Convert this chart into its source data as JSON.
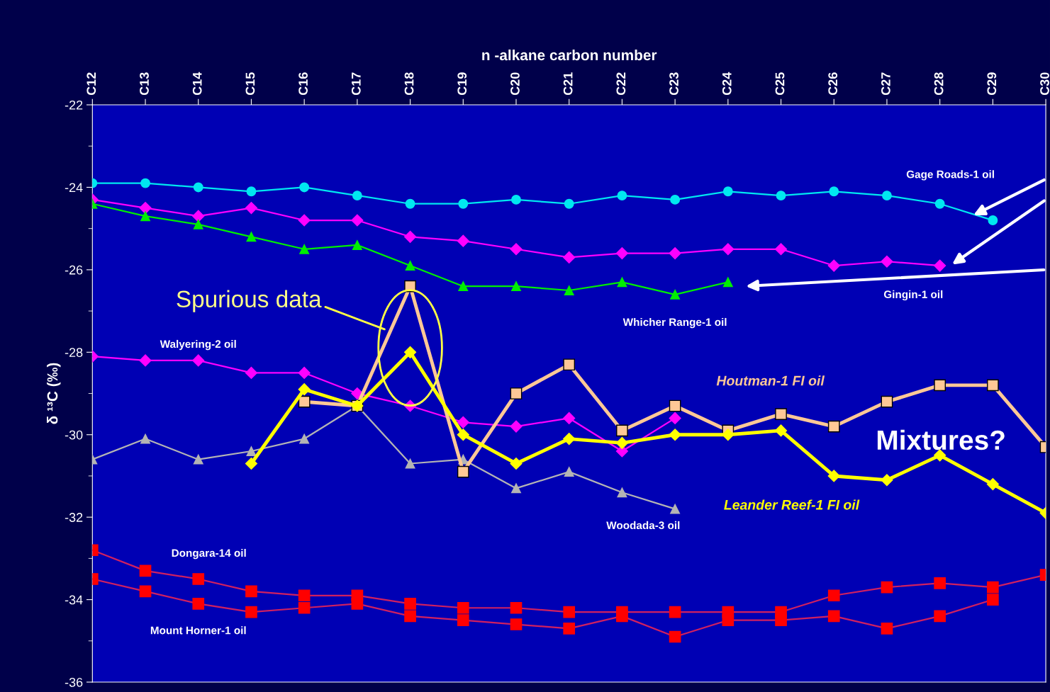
{
  "chart_data": {
    "type": "line",
    "xlabel": "n -alkane carbon number",
    "ylabel": "δ ¹³C (‰)",
    "categories": [
      "C12",
      "C13",
      "C14",
      "C15",
      "C16",
      "C17",
      "C18",
      "C19",
      "C20",
      "C21",
      "C22",
      "C23",
      "C24",
      "C25",
      "C26",
      "C27",
      "C28",
      "C29",
      "C30"
    ],
    "ylim": [
      -36,
      -22
    ],
    "yticks": [
      -36,
      -34,
      -32,
      -30,
      -28,
      -26,
      -24,
      -22
    ],
    "grid": false,
    "legend": false,
    "series": [
      {
        "name": "Gage Roads-1 oil",
        "color": "#00e8f0",
        "marker": "circle",
        "values": [
          -23.9,
          -23.9,
          -24.0,
          -24.1,
          -24.0,
          -24.2,
          -24.4,
          -24.4,
          -24.3,
          -24.4,
          -24.2,
          -24.3,
          -24.1,
          -24.2,
          -24.1,
          -24.2,
          -24.4,
          -24.8,
          null
        ]
      },
      {
        "name": "Gingin-1 oil",
        "color": "#ff00ff",
        "marker": "diamond",
        "values": [
          -24.3,
          -24.5,
          -24.7,
          -24.5,
          -24.8,
          -24.8,
          -25.2,
          -25.3,
          -25.5,
          -25.7,
          -25.6,
          -25.6,
          -25.5,
          -25.5,
          -25.9,
          -25.8,
          -25.9,
          null,
          null
        ]
      },
      {
        "name": "Whicher Range-1 oil",
        "color": "#00ee00",
        "marker": "triangle",
        "values": [
          -24.4,
          -24.7,
          -24.9,
          -25.2,
          -25.5,
          -25.4,
          -25.9,
          -26.4,
          -26.4,
          -26.5,
          -26.3,
          -26.6,
          -26.3,
          null,
          null,
          null,
          null,
          null,
          null
        ]
      },
      {
        "name": "Walyering-2 oil",
        "color": "#ff00ff",
        "marker": "diamond",
        "values": [
          -28.1,
          -28.2,
          -28.2,
          -28.5,
          -28.5,
          -29.0,
          -29.3,
          -29.7,
          -29.8,
          -29.6,
          -30.4,
          -29.6,
          null,
          null,
          null,
          null,
          null,
          null,
          null
        ]
      },
      {
        "name": "Woodada-3 oil",
        "color": "#b4b4b4",
        "marker": "triangle",
        "values": [
          -30.6,
          -30.1,
          -30.6,
          -30.4,
          -30.1,
          -29.3,
          -30.7,
          -30.6,
          -31.3,
          -30.9,
          -31.4,
          -31.8,
          null,
          null,
          null,
          null,
          null,
          null,
          null
        ]
      },
      {
        "name": "Houtman-1 FI oil",
        "color": "#ffc896",
        "marker": "square",
        "values": [
          null,
          null,
          null,
          null,
          -29.2,
          -29.3,
          -26.4,
          -30.9,
          -29.0,
          -28.3,
          -29.9,
          -29.3,
          -29.9,
          -29.5,
          -29.8,
          -29.2,
          -28.8,
          -28.8,
          -30.3
        ]
      },
      {
        "name": "Leander Reef-1 FI oil",
        "color": "#ffff00",
        "marker": "diamond",
        "values": [
          null,
          null,
          null,
          -30.7,
          -28.9,
          -29.3,
          -28.0,
          -30.0,
          -30.7,
          -30.1,
          -30.2,
          -30.0,
          -30.0,
          -29.9,
          -31.0,
          -31.1,
          -30.5,
          -31.2,
          -31.9
        ]
      },
      {
        "name": "Dongara-14 oil",
        "color": "#ff0000",
        "marker": "square",
        "values": [
          -32.8,
          -33.3,
          -33.5,
          -33.8,
          -33.9,
          -33.9,
          -34.1,
          -34.2,
          -34.2,
          -34.3,
          -34.3,
          -34.3,
          -34.3,
          -34.3,
          -33.9,
          -33.7,
          -33.6,
          -33.7,
          -33.4
        ]
      },
      {
        "name": "Mount Horner-1 oil",
        "color": "#ff0000",
        "marker": "square",
        "values": [
          -33.5,
          -33.8,
          -34.1,
          -34.3,
          -34.2,
          -34.1,
          -34.4,
          -34.5,
          -34.6,
          -34.7,
          -34.4,
          -34.9,
          -34.5,
          -34.5,
          -34.4,
          -34.7,
          -34.4,
          -34.0,
          null
        ]
      }
    ],
    "annotations": [
      "Spurious data",
      "Mixtures?"
    ]
  }
}
